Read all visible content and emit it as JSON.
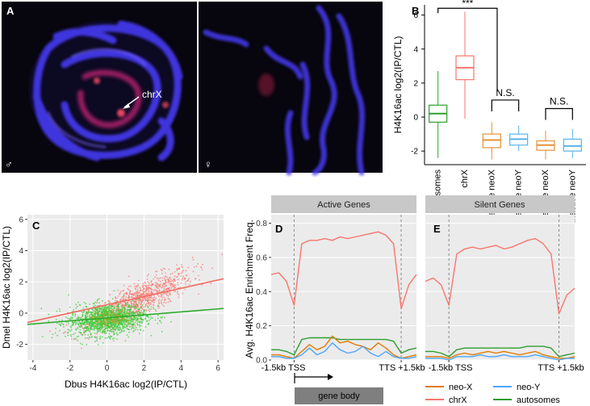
{
  "panels": {
    "A": {
      "letter": "A",
      "label_chrX": "chrX",
      "male_symbol": "♂",
      "female_symbol": "♀"
    }
  },
  "chart_data": [
    {
      "id": "B",
      "letter": "B",
      "type": "boxplot",
      "ylabel": "H4K16ac log2(IP/CTL)",
      "ylim": [
        -2.8,
        6.6
      ],
      "yticks": [
        -2,
        0,
        2,
        4,
        6
      ],
      "groups": [
        {
          "label": "autosomes",
          "q1": -0.3,
          "median": 0.2,
          "q3": 0.7,
          "whisker_low": -2.4,
          "whisker_high": 2.7,
          "color": "#2ca02c"
        },
        {
          "label": "chrX",
          "q1": 2.2,
          "median": 2.9,
          "q3": 3.6,
          "whisker_low": -0.1,
          "whisker_high": 6.2,
          "color": "#f8766d"
        },
        {
          "label": "active neoX",
          "q1": -1.8,
          "median": -1.35,
          "q3": -1.0,
          "whisker_low": -2.5,
          "whisker_high": -0.3,
          "color": "#e69138"
        },
        {
          "label": "active neoY",
          "q1": -1.65,
          "median": -1.3,
          "q3": -1.0,
          "whisker_low": -2.0,
          "whisker_high": -0.5,
          "color": "#56b4e9"
        },
        {
          "label": "inactive neoX",
          "q1": -1.95,
          "median": -1.65,
          "q3": -1.4,
          "whisker_low": -2.5,
          "whisker_high": -0.8,
          "color": "#e69138"
        },
        {
          "label": "inactive neoY",
          "q1": -2.0,
          "median": -1.7,
          "q3": -1.3,
          "whisker_low": -2.4,
          "whisker_high": -0.7,
          "color": "#56b4e9"
        }
      ],
      "annotations": [
        {
          "text": "***",
          "between": [
            "autosomes",
            "chrX"
          ],
          "y": 6.4
        },
        {
          "text": "N.S.",
          "between": [
            "active neoX",
            "active neoY"
          ],
          "y": 1.0
        },
        {
          "text": "N.S.",
          "between": [
            "inactive neoX",
            "inactive neoY"
          ],
          "y": 0.5
        }
      ]
    },
    {
      "id": "C",
      "letter": "C",
      "type": "scatter",
      "xlabel": "Dbus H4K16ac log2(IP/CTL)",
      "ylabel": "Dmel H4K16ac log2(IP/CTL)",
      "xlim": [
        -4.3,
        6.3
      ],
      "ylim": [
        -3.0,
        6.3
      ],
      "xticks": [
        -4,
        -2,
        0,
        2,
        4,
        6
      ],
      "yticks": [
        -2,
        0,
        2,
        4,
        6
      ],
      "series": [
        {
          "name": "chrX",
          "color": "#f8766d",
          "center_x": 1.8,
          "center_y": 1.1,
          "n": 900,
          "fit_line": {
            "x": [
              -4.3,
              6.3
            ],
            "y": [
              -0.6,
              2.2
            ]
          }
        },
        {
          "name": "autosomes",
          "color": "#33cc33",
          "center_x": 0.0,
          "center_y": -0.4,
          "n": 1400,
          "fit_line": {
            "x": [
              -4.3,
              6.3
            ],
            "y": [
              -0.72,
              0.3
            ]
          }
        }
      ]
    },
    {
      "id": "D",
      "letter": "D",
      "type": "line",
      "header": "Active Genes",
      "ylabel": "Avg. H4K16ac Enrichment Freq.",
      "ylim": [
        0,
        0.85
      ],
      "yticks": [
        0.0,
        0.2,
        0.4,
        0.6,
        0.8
      ],
      "x_tick_labels": [
        "-1.5kb TSS",
        "TTS +1.5kb"
      ],
      "gene_body_label": "gene body",
      "series": [
        {
          "name": "chrX",
          "color": "#f8766d",
          "values": [
            0.5,
            0.51,
            0.46,
            0.32,
            0.68,
            0.7,
            0.7,
            0.71,
            0.7,
            0.72,
            0.71,
            0.72,
            0.73,
            0.74,
            0.75,
            0.73,
            0.68,
            0.3,
            0.44,
            0.5
          ]
        },
        {
          "name": "autosomes",
          "color": "#2e9e2e",
          "values": [
            0.06,
            0.06,
            0.05,
            0.03,
            0.12,
            0.13,
            0.13,
            0.13,
            0.13,
            0.12,
            0.12,
            0.12,
            0.12,
            0.12,
            0.12,
            0.12,
            0.11,
            0.04,
            0.06,
            0.07
          ]
        },
        {
          "name": "neo-X",
          "color": "#e07b00",
          "values": [
            0.03,
            0.03,
            0.02,
            0.01,
            0.05,
            0.09,
            0.06,
            0.08,
            0.14,
            0.1,
            0.11,
            0.09,
            0.08,
            0.06,
            0.1,
            0.07,
            0.03,
            0.01,
            0.02,
            0.03
          ]
        },
        {
          "name": "neo-Y",
          "color": "#4da6ff",
          "values": [
            0.02,
            0.02,
            0.01,
            0.01,
            0.03,
            0.07,
            0.03,
            0.05,
            0.1,
            0.06,
            0.04,
            0.05,
            0.08,
            0.04,
            0.02,
            0.05,
            0.02,
            0.01,
            0.01,
            0.02
          ]
        }
      ]
    },
    {
      "id": "E",
      "letter": "E",
      "type": "line",
      "header": "Silent Genes",
      "ylim": [
        0,
        0.85
      ],
      "x_tick_labels": [
        "-1.5kb TSS",
        "TTS +1.5kb"
      ],
      "series": [
        {
          "name": "chrX",
          "color": "#f8766d",
          "values": [
            0.46,
            0.48,
            0.44,
            0.32,
            0.62,
            0.65,
            0.66,
            0.65,
            0.66,
            0.67,
            0.65,
            0.66,
            0.68,
            0.7,
            0.71,
            0.68,
            0.62,
            0.27,
            0.38,
            0.42
          ]
        },
        {
          "name": "autosomes",
          "color": "#2e9e2e",
          "values": [
            0.05,
            0.05,
            0.04,
            0.02,
            0.06,
            0.07,
            0.07,
            0.07,
            0.07,
            0.07,
            0.07,
            0.07,
            0.07,
            0.08,
            0.08,
            0.08,
            0.07,
            0.02,
            0.03,
            0.04
          ]
        },
        {
          "name": "neo-X",
          "color": "#e07b00",
          "values": [
            0.02,
            0.02,
            0.02,
            0.01,
            0.03,
            0.04,
            0.03,
            0.04,
            0.05,
            0.04,
            0.05,
            0.04,
            0.03,
            0.04,
            0.05,
            0.03,
            0.02,
            0.01,
            0.01,
            0.02
          ]
        },
        {
          "name": "neo-Y",
          "color": "#4da6ff",
          "values": [
            0.01,
            0.01,
            0.01,
            0.0,
            0.02,
            0.02,
            0.02,
            0.03,
            0.02,
            0.02,
            0.03,
            0.02,
            0.02,
            0.02,
            0.03,
            0.02,
            0.01,
            0.0,
            0.01,
            0.01
          ]
        }
      ]
    }
  ],
  "legend": [
    {
      "label": "neo-X",
      "color": "#e07b00"
    },
    {
      "label": "neo-Y",
      "color": "#4da6ff"
    },
    {
      "label": "chrX",
      "color": "#f8766d"
    },
    {
      "label": "autosomes",
      "color": "#2e9e2e"
    }
  ]
}
